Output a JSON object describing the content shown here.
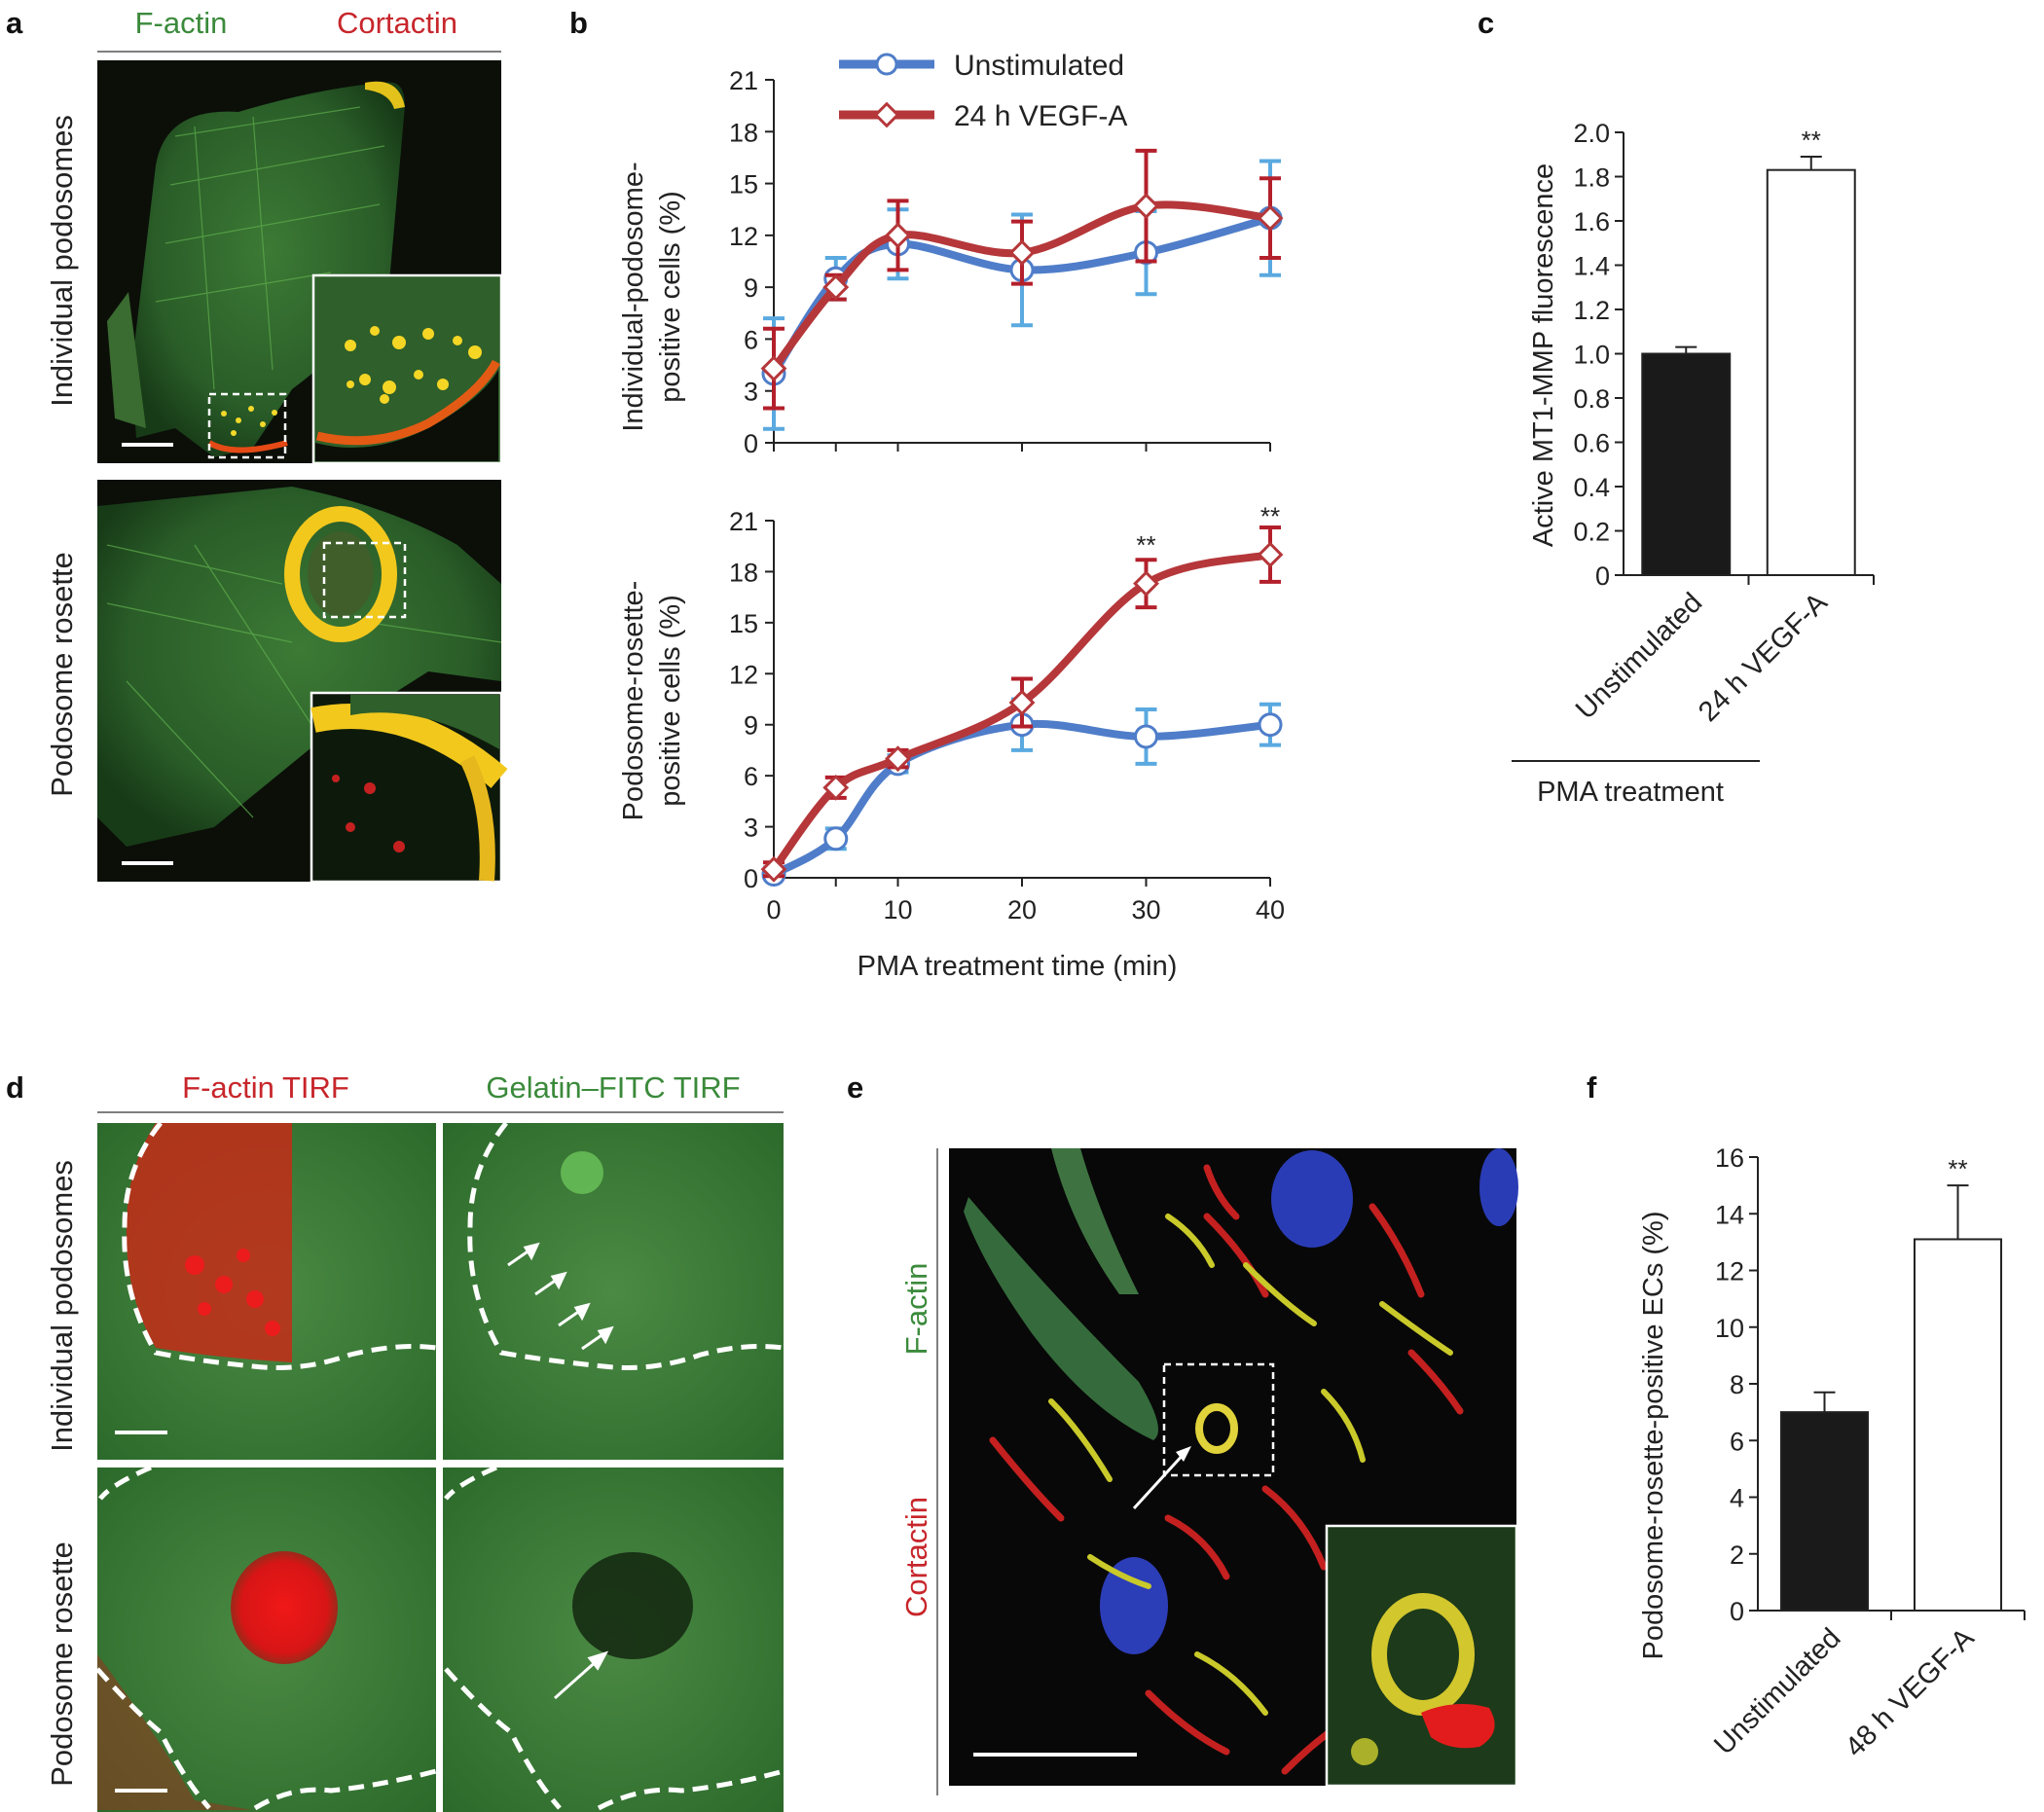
{
  "panels": {
    "a": {
      "label": "a",
      "header_green": "F-actin",
      "header_red": "Cortactin",
      "row1": "Individual podosomes",
      "row2": "Podosome rosette"
    },
    "d": {
      "label": "d",
      "header_red": "F-actin TIRF",
      "header_green": "Gelatin–FITC TIRF",
      "row1": "Individual podosomes",
      "row2": "Podosome rosette"
    },
    "e": {
      "label": "e",
      "side_green": "F-actin",
      "side_red": "Cortactin"
    }
  },
  "colors": {
    "unstim_line": "#4f7dc9",
    "unstim_err": "#5aa9e0",
    "vegf_line": "#b5373a",
    "vegf_err": "#b3202b",
    "green_label": "#3b8a3b",
    "red_label": "#c7262b"
  },
  "chart_data": [
    {
      "id": "b-top",
      "panel_label": "b",
      "type": "line",
      "ylabel": "Individual-podosome-positive cells (%)",
      "ylabel_lines": [
        "Individual-podosome-",
        "positive cells (%)"
      ],
      "xlabel": "",
      "ylim": [
        0,
        21
      ],
      "yticks": [
        0,
        3,
        6,
        9,
        12,
        15,
        18,
        21
      ],
      "x": [
        0,
        5,
        10,
        20,
        30,
        40
      ],
      "xlim": [
        0,
        40
      ],
      "legend": {
        "position": "top-left",
        "entries": [
          "Unstimulated",
          "24 h VEGF-A"
        ]
      },
      "series": [
        {
          "name": "Unstimulated",
          "values": [
            4.0,
            9.5,
            11.5,
            10.0,
            11.0,
            13.0
          ],
          "err": [
            3.2,
            1.2,
            2.0,
            3.2,
            2.4,
            3.3
          ]
        },
        {
          "name": "24 h VEGF-A",
          "values": [
            4.3,
            9.0,
            12.0,
            11.0,
            13.7,
            13.0
          ],
          "err": [
            2.3,
            0.7,
            2.0,
            1.8,
            3.2,
            2.3
          ]
        }
      ],
      "annotations": []
    },
    {
      "id": "b-bottom",
      "type": "line",
      "ylabel": "Podosome-rosette-positive cells (%)",
      "ylabel_lines": [
        "Podosome-rosette-",
        "positive cells (%)"
      ],
      "xlabel": "PMA treatment time (min)",
      "ylim": [
        0,
        21
      ],
      "yticks": [
        0,
        3,
        6,
        9,
        12,
        15,
        18,
        21
      ],
      "x": [
        0,
        5,
        10,
        20,
        30,
        40
      ],
      "xticks": [
        0,
        10,
        20,
        30,
        40
      ],
      "xlim": [
        0,
        40
      ],
      "series": [
        {
          "name": "Unstimulated",
          "values": [
            0.2,
            2.3,
            6.7,
            9.0,
            8.3,
            9.0
          ],
          "err": [
            0.4,
            0.6,
            0.5,
            1.5,
            1.6,
            1.2
          ]
        },
        {
          "name": "24 h VEGF-A",
          "values": [
            0.5,
            5.3,
            7.0,
            10.3,
            17.3,
            19.0
          ],
          "err": [
            0.4,
            0.6,
            0.5,
            1.4,
            1.4,
            1.6
          ]
        }
      ],
      "annotations": [
        {
          "x": 30,
          "y": 19.5,
          "text": "**"
        },
        {
          "x": 40,
          "y": 21.2,
          "text": "**"
        }
      ]
    },
    {
      "id": "c",
      "panel_label": "c",
      "type": "bar",
      "ylabel": "Active MT1-MMP fluorescence",
      "ylim": [
        0,
        2.0
      ],
      "yticks": [
        "0",
        "0.2",
        "0.4",
        "0.6",
        "0.8",
        "1.0",
        "1.2",
        "1.4",
        "1.6",
        "1.8",
        "2.0"
      ],
      "categories": [
        "Unstimulated",
        "24 h VEGF-A"
      ],
      "values": [
        1.0,
        1.83
      ],
      "err": [
        0.03,
        0.06
      ],
      "bar_colors": [
        "#1a1a1a",
        "#ffffff"
      ],
      "group_label": "PMA treatment",
      "annotations": [
        {
          "category": 1,
          "text": "**"
        }
      ]
    },
    {
      "id": "f",
      "panel_label": "f",
      "type": "bar",
      "ylabel": "Podosome-rosette-positive ECs (%)",
      "ylim": [
        0,
        16
      ],
      "yticks": [
        "0",
        "2",
        "4",
        "6",
        "8",
        "10",
        "12",
        "14",
        "16"
      ],
      "categories": [
        "Unstimulated",
        "48 h VEGF-A"
      ],
      "values": [
        7.0,
        13.1
      ],
      "err": [
        0.7,
        1.9
      ],
      "bar_colors": [
        "#1a1a1a",
        "#ffffff"
      ],
      "annotations": [
        {
          "category": 1,
          "text": "**"
        }
      ]
    }
  ]
}
